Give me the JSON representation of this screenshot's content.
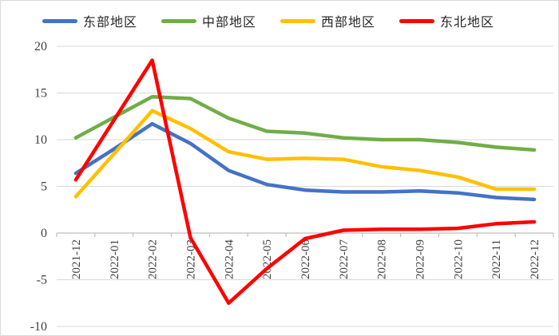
{
  "chart_data": {
    "type": "line",
    "title": "",
    "xlabel": "",
    "ylabel": "",
    "categories": [
      "2021-12",
      "2022-01",
      "2022-02",
      "2022-03",
      "2022-04",
      "2022-05",
      "2022-06",
      "2022-07",
      "2022-08",
      "2022-09",
      "2022-10",
      "2022-11",
      "2022-12"
    ],
    "series": [
      {
        "name": "东部地区",
        "color": "#4472C4",
        "values": [
          6.4,
          9.0,
          11.7,
          9.6,
          6.7,
          5.2,
          4.6,
          4.4,
          4.4,
          4.5,
          4.3,
          3.8,
          3.6
        ]
      },
      {
        "name": "中部地区",
        "color": "#70AD47",
        "values": [
          10.2,
          12.4,
          14.6,
          14.4,
          12.3,
          10.9,
          10.7,
          10.2,
          10.0,
          10.0,
          9.7,
          9.2,
          8.9
        ]
      },
      {
        "name": "西部地区",
        "color": "#FFC000",
        "values": [
          3.9,
          8.5,
          13.1,
          11.2,
          8.7,
          7.9,
          8.0,
          7.9,
          7.1,
          6.7,
          6.0,
          4.7,
          4.7
        ]
      },
      {
        "name": "东北地区",
        "color": "#FF0000",
        "values": [
          5.7,
          12.1,
          18.5,
          -0.5,
          -7.5,
          -3.8,
          -0.6,
          0.3,
          0.4,
          0.4,
          0.5,
          1.0,
          1.2
        ]
      }
    ],
    "ylim": [
      -10,
      20
    ],
    "yticks": [
      20,
      15,
      10,
      5,
      0,
      -5,
      -10
    ],
    "grid": true,
    "legend_position": "top",
    "colors": {
      "gridline": "#d9d9d9",
      "axis": "#bfbfbf",
      "tick_label": "#404040"
    }
  }
}
